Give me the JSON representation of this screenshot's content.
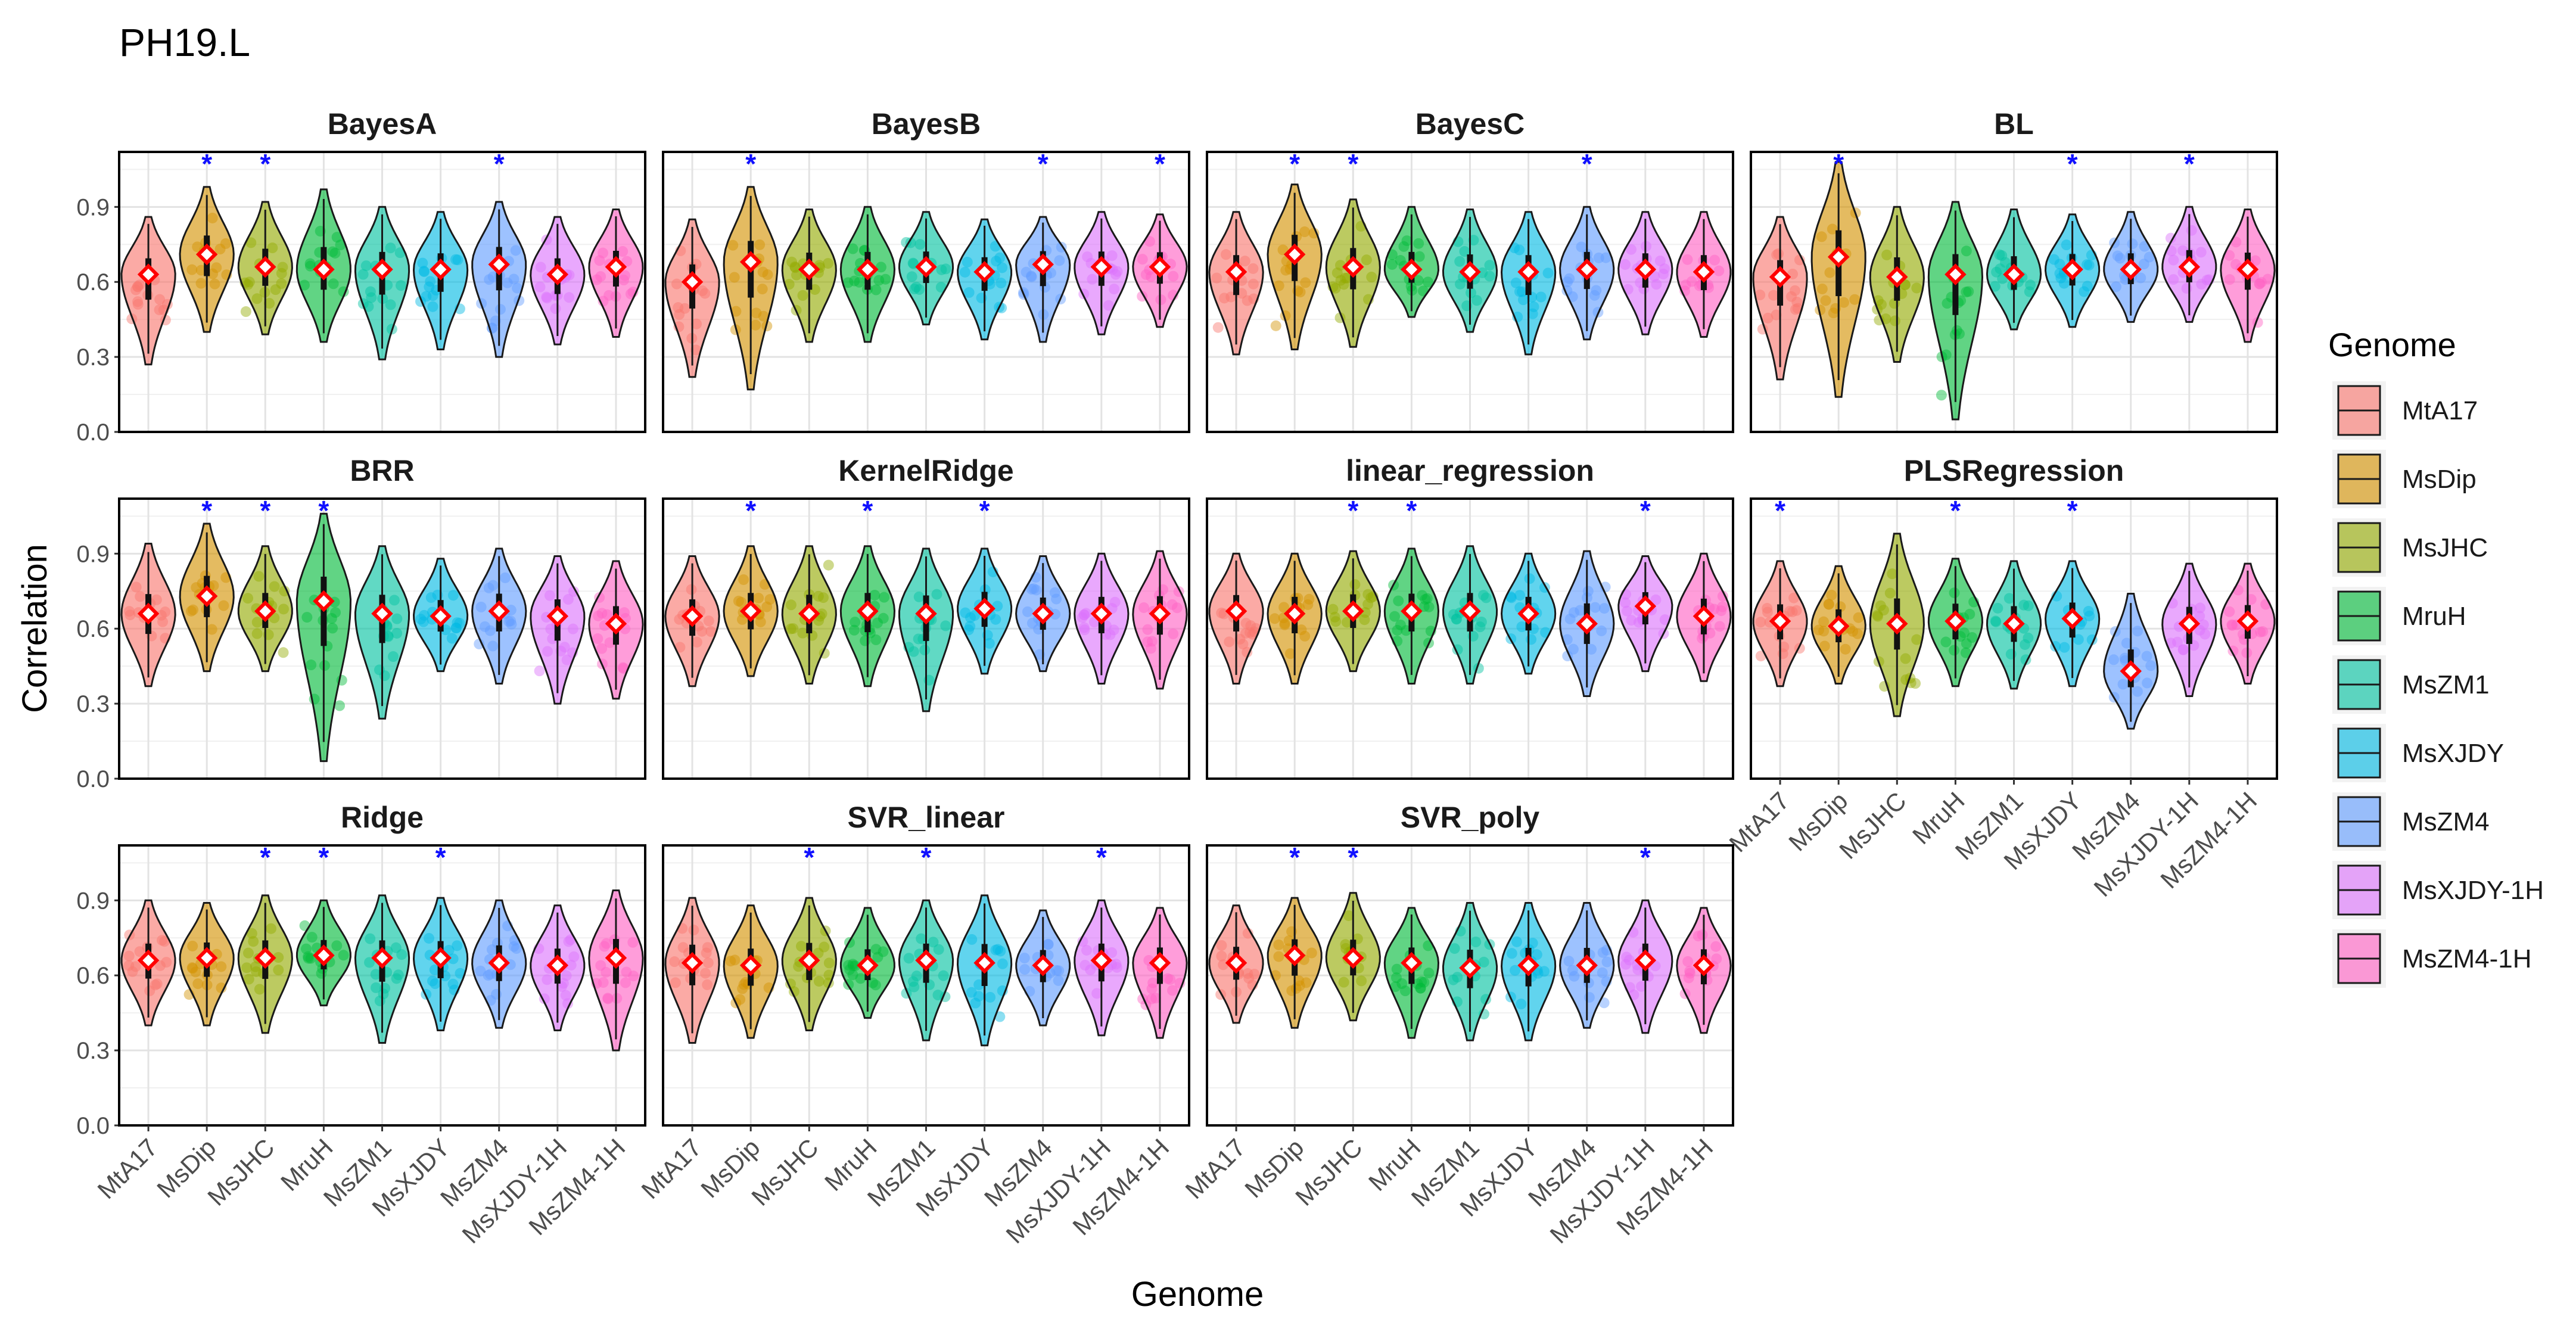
{
  "figure_title": "PH19.L",
  "x_axis_label": "Genome",
  "y_axis_label": "Correlation",
  "legend": {
    "title": "Genome",
    "items": [
      {
        "label": "MtA17",
        "color": "#F8766D"
      },
      {
        "label": "MsDip",
        "color": "#D39200"
      },
      {
        "label": "MsJHC",
        "color": "#93AA00"
      },
      {
        "label": "MruH",
        "color": "#00BA38"
      },
      {
        "label": "MsZM1",
        "color": "#00C19F"
      },
      {
        "label": "MsXJDY",
        "color": "#00B9E3"
      },
      {
        "label": "MsZM4",
        "color": "#619CFF"
      },
      {
        "label": "MsXJDY-1H",
        "color": "#DB72FB"
      },
      {
        "label": "MsZM4-1H",
        "color": "#FF61C3"
      }
    ]
  },
  "chart_data": {
    "type": "violin",
    "categories": [
      "MtA17",
      "MsDip",
      "MsJHC",
      "MruH",
      "MsZM1",
      "MsXJDY",
      "MsZM4",
      "MsXJDY-1H",
      "MsZM4-1H"
    ],
    "ylim": [
      0.0,
      1.12
    ],
    "yticks": [
      "0.0",
      "0.3",
      "0.6",
      "0.9"
    ],
    "significance_marker": "*",
    "panels": [
      {
        "title": "BayesA",
        "means": [
          0.63,
          0.71,
          0.66,
          0.65,
          0.65,
          0.65,
          0.67,
          0.63,
          0.66
        ],
        "mins": [
          0.27,
          0.4,
          0.39,
          0.36,
          0.29,
          0.33,
          0.3,
          0.35,
          0.38
        ],
        "maxs": [
          0.86,
          0.98,
          0.92,
          0.97,
          0.9,
          0.88,
          0.92,
          0.86,
          0.89
        ],
        "significant": [
          "MsDip",
          "MsJHC",
          "MsZM4"
        ]
      },
      {
        "title": "BayesB",
        "means": [
          0.6,
          0.68,
          0.65,
          0.65,
          0.66,
          0.64,
          0.67,
          0.66,
          0.66
        ],
        "mins": [
          0.22,
          0.17,
          0.36,
          0.36,
          0.43,
          0.37,
          0.36,
          0.39,
          0.42
        ],
        "maxs": [
          0.85,
          0.98,
          0.89,
          0.9,
          0.88,
          0.85,
          0.86,
          0.88,
          0.87
        ],
        "significant": [
          "MsDip",
          "MsZM4",
          "MsZM4-1H"
        ]
      },
      {
        "title": "BayesC",
        "means": [
          0.64,
          0.71,
          0.66,
          0.65,
          0.64,
          0.64,
          0.65,
          0.65,
          0.64
        ],
        "mins": [
          0.31,
          0.33,
          0.34,
          0.46,
          0.4,
          0.31,
          0.37,
          0.39,
          0.38
        ],
        "maxs": [
          0.88,
          0.99,
          0.93,
          0.9,
          0.89,
          0.88,
          0.9,
          0.88,
          0.88
        ],
        "significant": [
          "MsDip",
          "MsJHC",
          "MsZM4"
        ]
      },
      {
        "title": "BL",
        "means": [
          0.62,
          0.7,
          0.62,
          0.63,
          0.63,
          0.65,
          0.65,
          0.66,
          0.65
        ],
        "mins": [
          0.21,
          0.14,
          0.28,
          0.05,
          0.41,
          0.42,
          0.44,
          0.44,
          0.36
        ],
        "maxs": [
          0.86,
          1.08,
          0.9,
          0.92,
          0.89,
          0.87,
          0.88,
          0.9,
          0.89
        ],
        "significant": [
          "MsDip",
          "MsXJDY",
          "MsXJDY-1H"
        ]
      },
      {
        "title": "BRR",
        "means": [
          0.66,
          0.73,
          0.67,
          0.71,
          0.66,
          0.65,
          0.67,
          0.65,
          0.62
        ],
        "mins": [
          0.37,
          0.43,
          0.43,
          0.07,
          0.24,
          0.43,
          0.38,
          0.3,
          0.32
        ],
        "maxs": [
          0.94,
          1.02,
          0.93,
          1.06,
          0.93,
          0.88,
          0.92,
          0.89,
          0.87
        ],
        "significant": [
          "MsDip",
          "MsJHC",
          "MruH"
        ]
      },
      {
        "title": "KernelRidge",
        "means": [
          0.65,
          0.67,
          0.66,
          0.67,
          0.66,
          0.68,
          0.66,
          0.66,
          0.66
        ],
        "mins": [
          0.37,
          0.41,
          0.38,
          0.37,
          0.27,
          0.42,
          0.43,
          0.38,
          0.36
        ],
        "maxs": [
          0.89,
          0.93,
          0.93,
          0.93,
          0.92,
          0.92,
          0.89,
          0.9,
          0.91
        ],
        "significant": [
          "MsDip",
          "MruH",
          "MsXJDY"
        ]
      },
      {
        "title": "linear_regression",
        "means": [
          0.67,
          0.66,
          0.67,
          0.67,
          0.67,
          0.66,
          0.62,
          0.69,
          0.65
        ],
        "mins": [
          0.38,
          0.38,
          0.43,
          0.38,
          0.38,
          0.42,
          0.33,
          0.43,
          0.39
        ],
        "maxs": [
          0.9,
          0.9,
          0.91,
          0.92,
          0.93,
          0.9,
          0.91,
          0.89,
          0.9
        ],
        "significant": [
          "MsJHC",
          "MruH",
          "MsXJDY-1H"
        ]
      },
      {
        "title": "PLSRegression",
        "means": [
          0.63,
          0.61,
          0.62,
          0.63,
          0.62,
          0.64,
          0.43,
          0.62,
          0.63
        ],
        "mins": [
          0.37,
          0.38,
          0.25,
          0.37,
          0.36,
          0.37,
          0.2,
          0.33,
          0.38
        ],
        "maxs": [
          0.87,
          0.85,
          0.98,
          0.88,
          0.87,
          0.87,
          0.74,
          0.86,
          0.86
        ],
        "significant": [
          "MtA17",
          "MruH",
          "MsXJDY"
        ]
      },
      {
        "title": "Ridge",
        "means": [
          0.66,
          0.67,
          0.67,
          0.68,
          0.67,
          0.67,
          0.65,
          0.64,
          0.67
        ],
        "mins": [
          0.4,
          0.4,
          0.37,
          0.48,
          0.33,
          0.38,
          0.39,
          0.38,
          0.3
        ],
        "maxs": [
          0.9,
          0.89,
          0.92,
          0.9,
          0.92,
          0.91,
          0.9,
          0.88,
          0.94
        ],
        "significant": [
          "MsJHC",
          "MruH",
          "MsXJDY"
        ]
      },
      {
        "title": "SVR_linear",
        "means": [
          0.65,
          0.64,
          0.66,
          0.64,
          0.66,
          0.65,
          0.64,
          0.66,
          0.65
        ],
        "mins": [
          0.33,
          0.35,
          0.38,
          0.43,
          0.34,
          0.32,
          0.4,
          0.36,
          0.35
        ],
        "maxs": [
          0.91,
          0.88,
          0.91,
          0.87,
          0.9,
          0.92,
          0.86,
          0.9,
          0.87
        ],
        "significant": [
          "MsJHC",
          "MsZM1",
          "MsXJDY-1H"
        ]
      },
      {
        "title": "SVR_poly",
        "means": [
          0.65,
          0.68,
          0.67,
          0.65,
          0.63,
          0.64,
          0.64,
          0.66,
          0.64
        ],
        "mins": [
          0.41,
          0.39,
          0.42,
          0.35,
          0.34,
          0.34,
          0.39,
          0.37,
          0.37
        ],
        "maxs": [
          0.88,
          0.91,
          0.93,
          0.87,
          0.89,
          0.89,
          0.89,
          0.9,
          0.87
        ],
        "significant": [
          "MsDip",
          "MsJHC",
          "MsXJDY-1H"
        ]
      }
    ]
  }
}
